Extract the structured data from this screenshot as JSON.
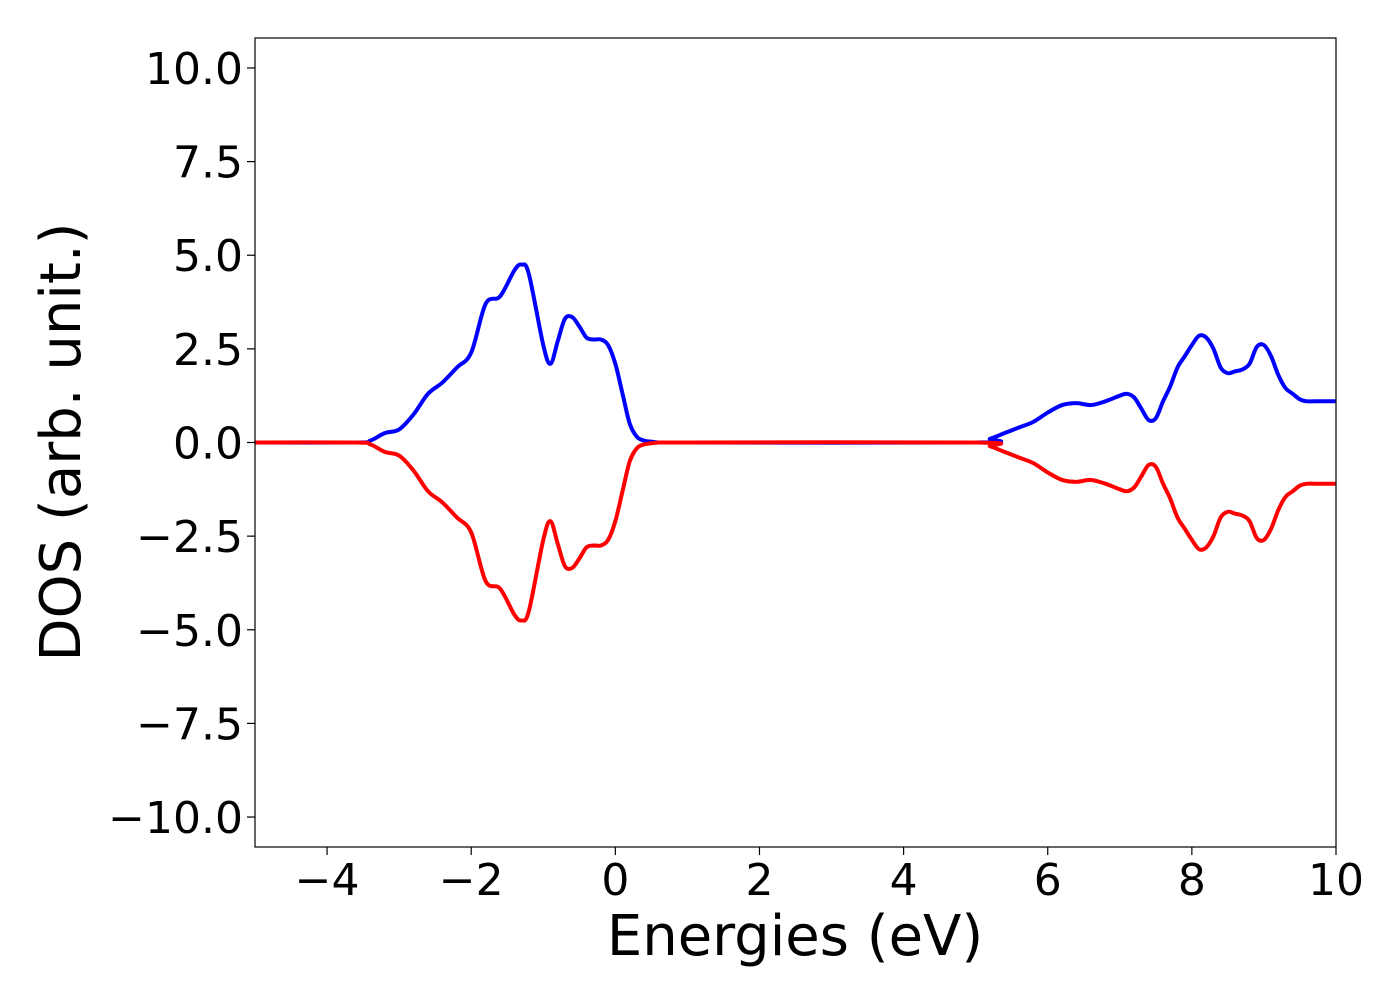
{
  "chart_data": {
    "type": "line",
    "title": "",
    "xlabel": "Energies (eV)",
    "ylabel": "DOS (arb. unit.)",
    "xlim": [
      -5,
      10
    ],
    "ylim": [
      -10.8,
      10.8
    ],
    "xticks": [
      -4,
      -2,
      0,
      2,
      4,
      6,
      8,
      10
    ],
    "xtick_labels": [
      "−4",
      "−2",
      "0",
      "2",
      "4",
      "6",
      "8",
      "10"
    ],
    "yticks": [
      10.0,
      7.5,
      5.0,
      2.5,
      0.0,
      -2.5,
      -5.0,
      -7.5,
      -10.0
    ],
    "ytick_labels": [
      "10.0",
      "7.5",
      "5.0",
      "2.5",
      "0.0",
      "−2.5",
      "−5.0",
      "−7.5",
      "−10.0"
    ],
    "grid": false,
    "legend": "none",
    "series": [
      {
        "color": "#0000ff",
        "x": [
          -5.0,
          -3.6,
          -3.4,
          -3.2,
          -3.0,
          -2.8,
          -2.6,
          -2.4,
          -2.2,
          -2.0,
          -1.8,
          -1.6,
          -1.4,
          -1.3,
          -1.2,
          -1.0,
          -0.9,
          -0.8,
          -0.7,
          -0.6,
          -0.5,
          -0.4,
          -0.3,
          -0.2,
          -0.1,
          0.0,
          0.1,
          0.2,
          0.3,
          0.4,
          0.5,
          0.6,
          0.7,
          0.8,
          1.0,
          5.0,
          5.2,
          5.4,
          5.6,
          5.8,
          6.0,
          6.2,
          6.4,
          6.6,
          6.8,
          7.0,
          7.1,
          7.2,
          7.3,
          7.4,
          7.5,
          7.6,
          7.7,
          7.8,
          7.9,
          8.0,
          8.1,
          8.2,
          8.3,
          8.4,
          8.5,
          8.6,
          8.7,
          8.8,
          8.9,
          9.0,
          9.1,
          9.2,
          9.3,
          9.4,
          9.5,
          9.6,
          9.7,
          9.8,
          9.9,
          10.0
        ],
        "y": [
          0,
          0.0,
          0.05,
          0.25,
          0.35,
          0.75,
          1.3,
          1.6,
          2.0,
          2.4,
          3.7,
          3.9,
          4.6,
          4.75,
          4.5,
          2.6,
          2.1,
          2.7,
          3.3,
          3.35,
          3.1,
          2.8,
          2.75,
          2.75,
          2.6,
          2.1,
          1.3,
          0.5,
          0.15,
          0.05,
          0.02,
          0.0,
          0.0,
          0.0,
          0.0,
          0.0,
          0.1,
          0.25,
          0.4,
          0.55,
          0.8,
          1.0,
          1.05,
          1.0,
          1.1,
          1.25,
          1.3,
          1.2,
          0.9,
          0.6,
          0.65,
          1.1,
          1.5,
          2.0,
          2.3,
          2.6,
          2.85,
          2.8,
          2.5,
          2.0,
          1.85,
          1.9,
          1.95,
          2.1,
          2.55,
          2.6,
          2.3,
          1.8,
          1.45,
          1.3,
          1.15,
          1.1,
          1.1,
          1.1,
          1.1,
          1.1
        ]
      },
      {
        "color": "#ff0000",
        "x": [
          -5.0,
          -3.6,
          -3.4,
          -3.2,
          -3.0,
          -2.8,
          -2.6,
          -2.4,
          -2.2,
          -2.0,
          -1.8,
          -1.6,
          -1.4,
          -1.3,
          -1.2,
          -1.0,
          -0.9,
          -0.8,
          -0.7,
          -0.6,
          -0.5,
          -0.4,
          -0.3,
          -0.2,
          -0.1,
          0.0,
          0.1,
          0.2,
          0.3,
          0.4,
          0.5,
          0.6,
          0.7,
          0.8,
          1.0,
          5.0,
          5.2,
          5.4,
          5.6,
          5.8,
          6.0,
          6.2,
          6.4,
          6.6,
          6.8,
          7.0,
          7.1,
          7.2,
          7.3,
          7.4,
          7.5,
          7.6,
          7.7,
          7.8,
          7.9,
          8.0,
          8.1,
          8.2,
          8.3,
          8.4,
          8.5,
          8.6,
          8.7,
          8.8,
          8.9,
          9.0,
          9.1,
          9.2,
          9.3,
          9.4,
          9.5,
          9.6,
          9.7,
          9.8,
          9.9,
          10.0
        ],
        "y": [
          0,
          0.0,
          -0.05,
          -0.25,
          -0.35,
          -0.75,
          -1.3,
          -1.6,
          -2.0,
          -2.4,
          -3.7,
          -3.9,
          -4.6,
          -4.75,
          -4.5,
          -2.6,
          -2.1,
          -2.7,
          -3.3,
          -3.35,
          -3.1,
          -2.8,
          -2.75,
          -2.75,
          -2.6,
          -2.1,
          -1.3,
          -0.5,
          -0.15,
          -0.05,
          -0.02,
          0.0,
          0.0,
          0.0,
          0.0,
          0.0,
          -0.1,
          -0.25,
          -0.4,
          -0.55,
          -0.8,
          -1.0,
          -1.05,
          -1.0,
          -1.1,
          -1.25,
          -1.3,
          -1.2,
          -0.9,
          -0.6,
          -0.65,
          -1.1,
          -1.5,
          -2.0,
          -2.3,
          -2.6,
          -2.85,
          -2.8,
          -2.5,
          -2.0,
          -1.85,
          -1.9,
          -1.95,
          -2.1,
          -2.55,
          -2.6,
          -2.3,
          -1.8,
          -1.45,
          -1.3,
          -1.15,
          -1.1,
          -1.1,
          -1.1,
          -1.1,
          -1.1
        ]
      }
    ]
  }
}
